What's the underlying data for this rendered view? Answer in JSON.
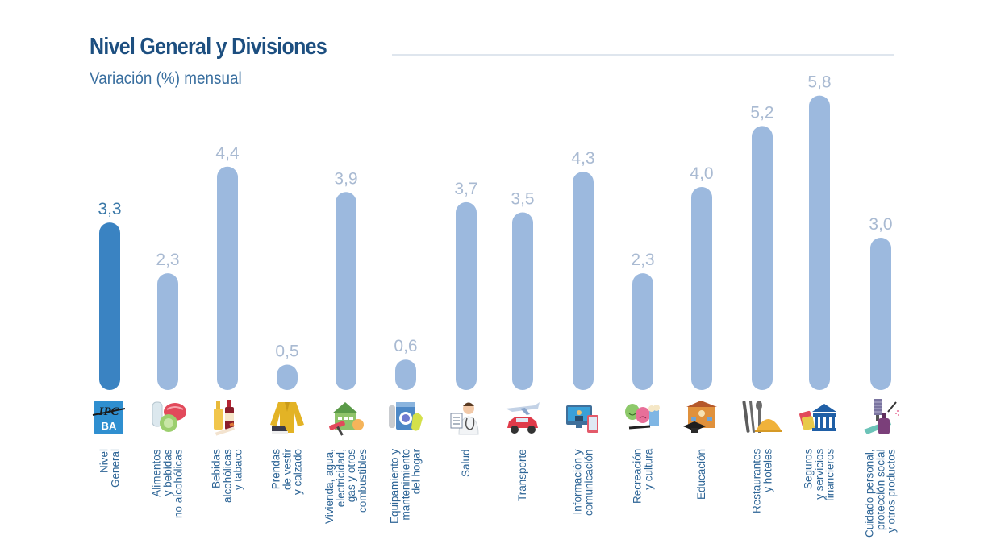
{
  "header": {
    "title": "Nivel General y Divisiones",
    "subtitle": "Variación (%) mensual"
  },
  "colors": {
    "highlight_bar": "#3a83c2",
    "bar": "#9cb9de",
    "title": "#1d4f80",
    "label": "#2e6596",
    "value_label": "#a9bad2"
  },
  "chart_data": {
    "type": "bar",
    "title": "Nivel General y Divisiones",
    "subtitle": "Variación (%) mensual",
    "xlabel": "",
    "ylabel": "Variación (%) mensual",
    "ylim": [
      0,
      5.8
    ],
    "grid": false,
    "legend": "none",
    "categories": [
      "Nivel\nGeneral",
      "Alimentos\ny bebidas\nno alcohólicas",
      "Bebidas\nalcohólicas\ny tabaco",
      "Prendas\nde vestir\ny calzado",
      "Vivienda, agua,\nelectricidad,\ngas y otros\ncombustibles",
      "Equipamiento y\nmantenimiento\ndel hogar",
      "Salud",
      "Transporte",
      "Información y\ncomunicación",
      "Recreación\ny cultura",
      "Educación",
      "Restaurantes\ny hoteles",
      "Seguros\ny servicios\nfinancieros",
      "Cuidado personal,\nprotección social\ny otros productos"
    ],
    "values": [
      3.3,
      2.3,
      4.4,
      0.5,
      3.9,
      0.6,
      3.7,
      3.5,
      4.3,
      2.3,
      4.0,
      5.2,
      5.8,
      3.0
    ],
    "value_labels": [
      "3,3",
      "2,3",
      "4,4",
      "0,5",
      "3,9",
      "0,6",
      "3,7",
      "3,5",
      "4,3",
      "2,3",
      "4,0",
      "5,2",
      "5,8",
      "3,0"
    ],
    "highlight_index": 0,
    "icons": [
      "ipc-ba-logo-icon",
      "food-milk-meat-lettuce-icon",
      "bottles-cigarette-icon",
      "jacket-sneaker-icon",
      "house-paint-roller-bulb-icon",
      "washing-machine-radiator-icon",
      "doctor-clipboard-icon",
      "airplane-car-icon",
      "computer-phone-icon",
      "theater-masks-popcorn-icon",
      "school-graduation-cap-icon",
      "cutlery-cloche-icon",
      "bank-cards-icon",
      "hairbrush-spray-icon"
    ],
    "icon_label": "IPC BA"
  }
}
